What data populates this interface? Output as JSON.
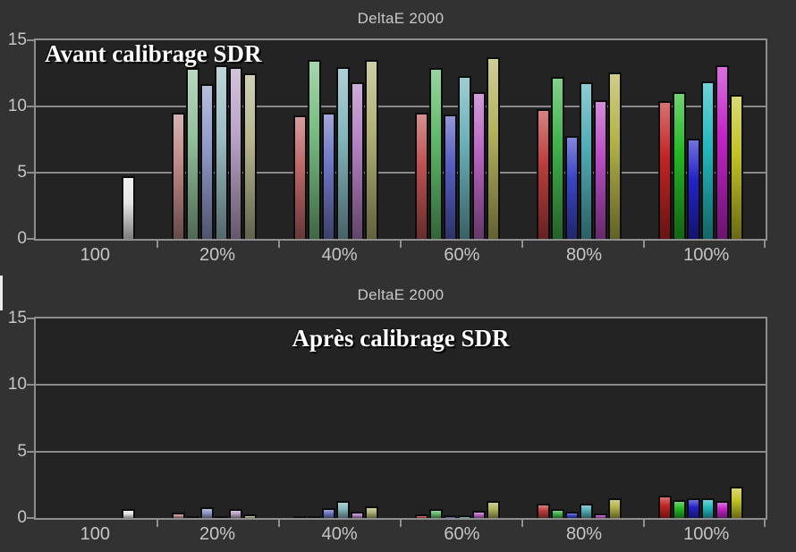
{
  "page": {
    "background": "#323232",
    "plot_background": "#232323",
    "grid_color": "#8a8a8a",
    "label_color": "#c6c6c6",
    "title_color": "#c8c8c8",
    "annotation_color": "#ffffff",
    "bar_outline_color": "#0d0d0d"
  },
  "chart_data": [
    {
      "type": "bar",
      "title": "DeltaE 2000",
      "annotation": "Avant calibrage SDR",
      "annotation_position": "top-left",
      "xlabel": "",
      "ylabel": "",
      "ylim": [
        0,
        15
      ],
      "yticks": [
        0,
        5,
        10,
        15
      ],
      "grid": true,
      "legend": "none",
      "categories": [
        "100",
        "20%",
        "40%",
        "60%",
        "80%",
        "100%"
      ],
      "groups": [
        {
          "category": "100",
          "bar_names": [
            "",
            "",
            "",
            "",
            "",
            "white"
          ],
          "colors": [
            null,
            null,
            null,
            null,
            null,
            "#e6e6e6"
          ],
          "values": [
            null,
            null,
            null,
            null,
            null,
            4.7
          ]
        },
        {
          "category": "20%",
          "bar_names": [
            "red",
            "green",
            "blue",
            "cyan",
            "magenta",
            "yellow"
          ],
          "colors": [
            "#bd8888",
            "#93c09c",
            "#9099c9",
            "#9cbec3",
            "#b9a2c7",
            "#b5b68e"
          ],
          "values": [
            9.5,
            12.9,
            11.7,
            13.1,
            13.0,
            12.5
          ]
        },
        {
          "category": "40%",
          "bar_names": [
            "red",
            "green",
            "blue",
            "cyan",
            "magenta",
            "yellow"
          ],
          "colors": [
            "#bd6868",
            "#76bd80",
            "#6d76c2",
            "#83b6bd",
            "#b180c1",
            "#b1b173"
          ],
          "values": [
            9.3,
            13.5,
            9.5,
            13.0,
            11.8,
            13.5
          ]
        },
        {
          "category": "60%",
          "bar_names": [
            "red",
            "green",
            "blue",
            "cyan",
            "magenta",
            "yellow"
          ],
          "colors": [
            "#bd5252",
            "#60ba6b",
            "#555dc1",
            "#69b1b9",
            "#b965c3",
            "#b3b35d"
          ],
          "values": [
            9.5,
            12.9,
            9.4,
            12.3,
            11.1,
            13.7
          ]
        },
        {
          "category": "80%",
          "bar_names": [
            "red",
            "green",
            "blue",
            "cyan",
            "magenta",
            "yellow"
          ],
          "colors": [
            "#bd3e3e",
            "#40b44b",
            "#3b45c5",
            "#50aeb7",
            "#b94dc5",
            "#b3b347"
          ],
          "values": [
            9.8,
            12.2,
            7.8,
            11.8,
            10.5,
            12.6
          ]
        },
        {
          "category": "100%",
          "bar_names": [
            "red",
            "green",
            "blue",
            "cyan",
            "magenta",
            "yellow"
          ],
          "colors": [
            "#c32323",
            "#23b823",
            "#2323c9",
            "#23b9bf",
            "#c223c9",
            "#c3c323"
          ],
          "values": [
            10.4,
            11.1,
            7.6,
            11.9,
            13.1,
            10.9
          ]
        }
      ]
    },
    {
      "type": "bar",
      "title": "DeltaE 2000",
      "annotation": "Après calibrage SDR",
      "annotation_position": "top-center",
      "xlabel": "",
      "ylabel": "",
      "ylim": [
        0,
        15
      ],
      "yticks": [
        0,
        5,
        10,
        15
      ],
      "grid": true,
      "legend": "none",
      "categories": [
        "100",
        "20%",
        "40%",
        "60%",
        "80%",
        "100%"
      ],
      "groups": [
        {
          "category": "100",
          "bar_names": [
            "",
            "",
            "",
            "",
            "",
            "white"
          ],
          "colors": [
            null,
            null,
            null,
            null,
            null,
            "#e6e6e6"
          ],
          "values": [
            null,
            null,
            null,
            null,
            null,
            0.65
          ]
        },
        {
          "category": "20%",
          "bar_names": [
            "red",
            "green",
            "blue",
            "cyan",
            "magenta",
            "yellow"
          ],
          "colors": [
            "#bd8888",
            "#93c09c",
            "#9099c9",
            "#9cbec3",
            "#b9a2c7",
            "#b5b68e"
          ],
          "values": [
            0.4,
            0.05,
            0.8,
            0.05,
            0.65,
            0.3
          ]
        },
        {
          "category": "40%",
          "bar_names": [
            "red",
            "green",
            "blue",
            "cyan",
            "magenta",
            "yellow"
          ],
          "colors": [
            "#bd6868",
            "#76bd80",
            "#6d76c2",
            "#83b6bd",
            "#b180c1",
            "#b1b173"
          ],
          "values": [
            0.05,
            0.05,
            0.75,
            1.25,
            0.5,
            0.85
          ]
        },
        {
          "category": "60%",
          "bar_names": [
            "red",
            "green",
            "blue",
            "cyan",
            "magenta",
            "yellow"
          ],
          "colors": [
            "#bd5252",
            "#60ba6b",
            "#555dc1",
            "#69b1b9",
            "#b965c3",
            "#b3b35d"
          ],
          "values": [
            0.3,
            0.65,
            0.2,
            0.2,
            0.55,
            1.25
          ]
        },
        {
          "category": "80%",
          "bar_names": [
            "red",
            "green",
            "blue",
            "cyan",
            "magenta",
            "yellow"
          ],
          "colors": [
            "#bd3e3e",
            "#40b44b",
            "#3b45c5",
            "#50aeb7",
            "#b94dc5",
            "#b3b347"
          ],
          "values": [
            1.1,
            0.65,
            0.5,
            1.05,
            0.35,
            1.45
          ]
        },
        {
          "category": "100%",
          "bar_names": [
            "red",
            "green",
            "blue",
            "cyan",
            "magenta",
            "yellow"
          ],
          "colors": [
            "#c32323",
            "#23b823",
            "#2323c9",
            "#23b9bf",
            "#c223c9",
            "#c3c323"
          ],
          "values": [
            1.65,
            1.35,
            1.45,
            1.5,
            1.3,
            2.35
          ]
        }
      ]
    }
  ]
}
